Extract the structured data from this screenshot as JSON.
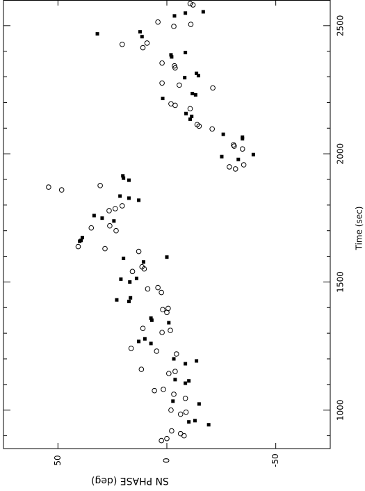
{
  "chart_data": {
    "type": "scatter",
    "x_label": "SN PHASE (deg)",
    "y_label": "Time (sec)",
    "xlim": [
      75,
      -75
    ],
    "xticks": [
      50,
      0,
      -50
    ],
    "ylim": [
      850,
      2600
    ],
    "yticks": [
      1000,
      1500,
      2000,
      2500
    ],
    "y_minor_ticks": [
      900,
      1100,
      1200,
      1300,
      1400,
      1600,
      1700,
      1800,
      1900,
      2100,
      2200,
      2300,
      2400,
      2600
    ],
    "series": [
      {
        "marker": "square",
        "color": "#000000",
        "x": [
          -3.5,
          -8.5,
          -16.7,
          31.9,
          12.3,
          11.4,
          -8.5,
          -2.2,
          -1.9,
          -13.6,
          -14.5,
          -8.2,
          -11.7,
          -13.2,
          1.9,
          -8.8,
          -11.4,
          -10.7,
          -25.9,
          -34.7,
          -34.7,
          -39.7,
          -25.2,
          -32.8,
          20.2,
          19.9,
          17.4,
          21.5,
          17.4,
          12.9,
          33.4,
          29.7,
          24.3,
          38.8,
          39.4,
          40.0,
          10.7,
          0.0,
          19.9,
          21.1,
          13.9,
          17.0,
          16.7,
          17.4,
          23.0,
          7.3,
          6.9,
          -0.9,
          10.1,
          12.9,
          7.3,
          -3.2,
          -13.6,
          -8.5,
          -10.1,
          -8.5,
          -3.8,
          -2.8,
          -14.8,
          -12.9,
          -10.1,
          -19.2
        ],
        "values": [
          2538,
          2549,
          2554,
          2468,
          2476,
          2457,
          2395,
          2378,
          2386,
          2314,
          2305,
          2297,
          2235,
          2230,
          2216,
          2157,
          2146,
          2135,
          2076,
          2065,
          2059,
          1997,
          1989,
          1978,
          1914,
          1905,
          1897,
          1835,
          1827,
          1819,
          1759,
          1749,
          1738,
          1673,
          1662,
          1659,
          1578,
          1597,
          1592,
          1511,
          1514,
          1500,
          1438,
          1424,
          1430,
          1359,
          1351,
          1341,
          1278,
          1268,
          1260,
          1200,
          1192,
          1181,
          1114,
          1105,
          1119,
          1035,
          1024,
          959,
          954,
          943
        ]
      },
      {
        "marker": "circle",
        "color": "#000000",
        "x": [
          -10.7,
          -12.0,
          4.1,
          -3.2,
          -11.0,
          20.5,
          9.1,
          11.0,
          2.2,
          -3.5,
          -3.8,
          -5.7,
          2.2,
          -21.1,
          -1.9,
          -3.8,
          -10.7,
          -13.9,
          -14.8,
          -20.8,
          -30.6,
          -30.9,
          -34.7,
          -28.7,
          -31.5,
          -35.3,
          54.3,
          48.3,
          30.6,
          20.5,
          23.7,
          26.5,
          26.2,
          34.7,
          23.3,
          40.7,
          28.4,
          12.9,
          11.4,
          10.4,
          15.8,
          8.8,
          4.1,
          2.5,
          1.9,
          -0.6,
          0.0,
          11.0,
          2.2,
          -1.6,
          16.4,
          4.7,
          -4.4,
          11.7,
          -0.9,
          -3.8,
          5.7,
          1.6,
          -3.2,
          -8.5,
          -1.9,
          -6.3,
          -8.8,
          -2.2,
          -6.3,
          -7.9,
          0.0,
          2.5
        ],
        "values": [
          2586,
          2581,
          2514,
          2497,
          2505,
          2427,
          2432,
          2414,
          2354,
          2343,
          2335,
          2268,
          2276,
          2257,
          2195,
          2189,
          2176,
          2114,
          2108,
          2097,
          2035,
          2030,
          2019,
          1949,
          1941,
          1957,
          1870,
          1859,
          1876,
          1797,
          1786,
          1778,
          1719,
          1711,
          1700,
          1638,
          1630,
          1619,
          1559,
          1551,
          1541,
          1473,
          1478,
          1459,
          1392,
          1397,
          1381,
          1319,
          1303,
          1311,
          1241,
          1230,
          1219,
          1159,
          1143,
          1151,
          1076,
          1081,
          1062,
          1046,
          1000,
          984,
          992,
          919,
          908,
          900,
          889,
          881
        ]
      }
    ]
  }
}
